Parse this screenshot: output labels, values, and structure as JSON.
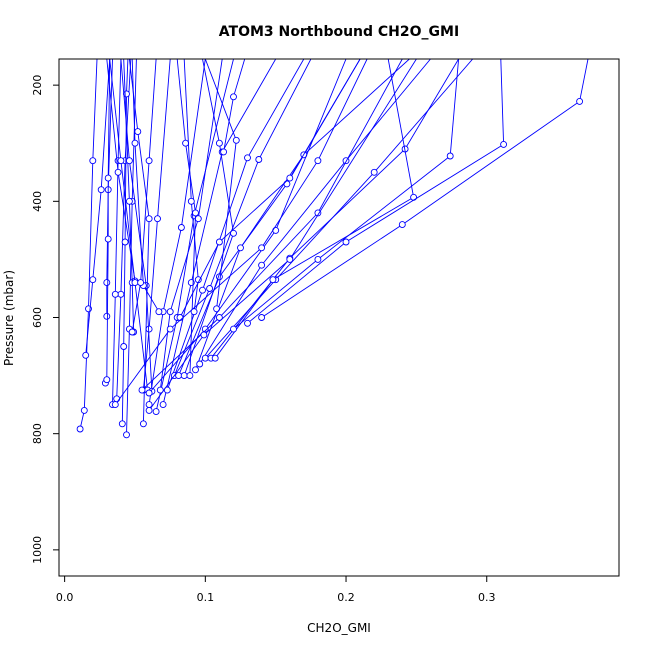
{
  "chart_data": {
    "type": "line",
    "title": "ATOM3 Northbound CH2O_GMI",
    "xlabel": "CH2O_GMI",
    "ylabel": "Pressure (mbar)",
    "xlim": [
      -0.004,
      0.394
    ],
    "ylim": [
      1045,
      155
    ],
    "y_reversed": true,
    "x_ticks": [
      0.0,
      0.1,
      0.2,
      0.3
    ],
    "x_tick_labels": [
      "0.0",
      "0.1",
      "0.2",
      "0.3"
    ],
    "y_ticks": [
      200,
      400,
      600,
      800,
      1000
    ],
    "y_tick_labels": [
      "200",
      "400",
      "600",
      "800",
      "1000"
    ],
    "series_color": "#0000ff",
    "grid": false,
    "legend": "none",
    "series": [
      {
        "points": [
          [
            0.011,
            792
          ],
          [
            0.014,
            760
          ],
          [
            0.017,
            585
          ],
          [
            0.02,
            330
          ],
          [
            0.023,
            155
          ]
        ]
      },
      {
        "points": [
          [
            0.015,
            665
          ],
          [
            0.02,
            535
          ],
          [
            0.026,
            380
          ],
          [
            0.032,
            155
          ]
        ]
      },
      {
        "points": [
          [
            0.03,
            598
          ],
          [
            0.03,
            540
          ],
          [
            0.031,
            380
          ],
          [
            0.034,
            155
          ]
        ]
      },
      {
        "points": [
          [
            0.029,
            713
          ],
          [
            0.03,
            707
          ],
          [
            0.031,
            465
          ],
          [
            0.031,
            360
          ],
          [
            0.032,
            155
          ]
        ]
      },
      {
        "points": [
          [
            0.037,
            740
          ],
          [
            0.04,
            560
          ],
          [
            0.043,
            330
          ],
          [
            0.047,
            155
          ]
        ]
      },
      {
        "points": [
          [
            0.034,
            750
          ],
          [
            0.036,
            560
          ],
          [
            0.038,
            330
          ],
          [
            0.04,
            155
          ]
        ]
      },
      {
        "points": [
          [
            0.041,
            783
          ],
          [
            0.042,
            650
          ],
          [
            0.043,
            470
          ],
          [
            0.044,
            215
          ],
          [
            0.045,
            155
          ]
        ]
      },
      {
        "points": [
          [
            0.044,
            802
          ],
          [
            0.046,
            620
          ],
          [
            0.048,
            400
          ],
          [
            0.051,
            155
          ]
        ]
      },
      {
        "points": [
          [
            0.049,
            625
          ],
          [
            0.048,
            540
          ],
          [
            0.046,
            400
          ],
          [
            0.042,
            155
          ]
        ]
      },
      {
        "points": [
          [
            0.05,
            537
          ],
          [
            0.038,
            350
          ],
          [
            0.03,
            155
          ]
        ]
      },
      {
        "points": [
          [
            0.056,
            725
          ],
          [
            0.06,
            620
          ],
          [
            0.066,
            430
          ],
          [
            0.075,
            155
          ]
        ]
      },
      {
        "points": [
          [
            0.059,
            725
          ],
          [
            0.05,
            540
          ],
          [
            0.04,
            330
          ],
          [
            0.032,
            155
          ]
        ]
      },
      {
        "points": [
          [
            0.06,
            750
          ],
          [
            0.07,
            590
          ],
          [
            0.083,
            445
          ],
          [
            0.1,
            155
          ]
        ]
      },
      {
        "points": [
          [
            0.062,
            727
          ],
          [
            0.058,
            545
          ],
          [
            0.046,
            330
          ],
          [
            0.04,
            155
          ]
        ]
      },
      {
        "points": [
          [
            0.065,
            762
          ],
          [
            0.08,
            600
          ],
          [
            0.092,
            425
          ],
          [
            0.12,
            155
          ]
        ]
      },
      {
        "points": [
          [
            0.056,
            783
          ],
          [
            0.06,
            430
          ],
          [
            0.052,
            280
          ],
          [
            0.046,
            155
          ]
        ]
      },
      {
        "points": [
          [
            0.07,
            750
          ],
          [
            0.09,
            540
          ],
          [
            0.112,
            315
          ],
          [
            0.15,
            155
          ]
        ]
      },
      {
        "points": [
          [
            0.073,
            725
          ],
          [
            0.098,
            553
          ],
          [
            0.13,
            325
          ],
          [
            0.17,
            155
          ]
        ]
      },
      {
        "points": [
          [
            0.068,
            725
          ],
          [
            0.075,
            590
          ],
          [
            0.095,
            430
          ],
          [
            0.112,
            155
          ]
        ]
      },
      {
        "points": [
          [
            0.078,
            700
          ],
          [
            0.103,
            550
          ],
          [
            0.138,
            328
          ],
          [
            0.175,
            155
          ]
        ]
      },
      {
        "points": [
          [
            0.081,
            700
          ],
          [
            0.11,
            530
          ],
          [
            0.158,
            370
          ],
          [
            0.21,
            155
          ]
        ]
      },
      {
        "points": [
          [
            0.085,
            700
          ],
          [
            0.12,
            455
          ],
          [
            0.11,
            300
          ],
          [
            0.098,
            155
          ]
        ]
      },
      {
        "points": [
          [
            0.089,
            700
          ],
          [
            0.093,
            420
          ],
          [
            0.086,
            300
          ],
          [
            0.08,
            155
          ]
        ]
      },
      {
        "points": [
          [
            0.093,
            690
          ],
          [
            0.125,
            480
          ],
          [
            0.17,
            320
          ],
          [
            0.245,
            155
          ]
        ]
      },
      {
        "points": [
          [
            0.096,
            680
          ],
          [
            0.14,
            510
          ],
          [
            0.2,
            330
          ],
          [
            0.26,
            155
          ]
        ]
      },
      {
        "points": [
          [
            0.1,
            670
          ],
          [
            0.15,
            535
          ],
          [
            0.22,
            350
          ],
          [
            0.29,
            155
          ]
        ]
      },
      {
        "points": [
          [
            0.104,
            670
          ],
          [
            0.16,
            498
          ],
          [
            0.242,
            310
          ],
          [
            0.28,
            155
          ]
        ]
      },
      {
        "points": [
          [
            0.107,
            670
          ],
          [
            0.148,
            535
          ],
          [
            0.248,
            393
          ],
          [
            0.23,
            155
          ]
        ]
      },
      {
        "points": [
          [
            0.108,
            585
          ],
          [
            0.122,
            295
          ],
          [
            0.1,
            155
          ]
        ]
      },
      {
        "points": [
          [
            0.113,
            315
          ],
          [
            0.12,
            220
          ],
          [
            0.128,
            155
          ]
        ]
      },
      {
        "points": [
          [
            0.12,
            620
          ],
          [
            0.18,
            500
          ],
          [
            0.274,
            322
          ],
          [
            0.28,
            155
          ]
        ]
      },
      {
        "points": [
          [
            0.13,
            610
          ],
          [
            0.2,
            470
          ],
          [
            0.312,
            302
          ],
          [
            0.31,
            155
          ]
        ]
      },
      {
        "points": [
          [
            0.14,
            600
          ],
          [
            0.24,
            440
          ],
          [
            0.366,
            228
          ],
          [
            0.372,
            155
          ]
        ]
      },
      {
        "points": [
          [
            0.067,
            590
          ],
          [
            0.056,
            545
          ],
          [
            0.05,
            300
          ],
          [
            0.048,
            155
          ]
        ]
      },
      {
        "points": [
          [
            0.092,
            590
          ],
          [
            0.095,
            535
          ],
          [
            0.09,
            400
          ],
          [
            0.085,
            155
          ]
        ]
      },
      {
        "points": [
          [
            0.082,
            600
          ],
          [
            0.11,
            470
          ],
          [
            0.16,
            360
          ],
          [
            0.21,
            155
          ]
        ]
      },
      {
        "points": [
          [
            0.06,
            730
          ],
          [
            0.1,
            620
          ],
          [
            0.15,
            450
          ],
          [
            0.2,
            155
          ]
        ]
      },
      {
        "points": [
          [
            0.055,
            725
          ],
          [
            0.11,
            600
          ],
          [
            0.18,
            420
          ],
          [
            0.24,
            155
          ]
        ]
      },
      {
        "points": [
          [
            0.048,
            625
          ],
          [
            0.054,
            540
          ],
          [
            0.06,
            330
          ],
          [
            0.065,
            155
          ]
        ]
      },
      {
        "points": [
          [
            0.036,
            750
          ],
          [
            0.075,
            620
          ],
          [
            0.14,
            480
          ],
          [
            0.18,
            330
          ],
          [
            0.215,
            155
          ]
        ]
      },
      {
        "points": [
          [
            0.06,
            760
          ],
          [
            0.099,
            630
          ],
          [
            0.16,
            500
          ],
          [
            0.25,
            155
          ]
        ]
      }
    ]
  }
}
